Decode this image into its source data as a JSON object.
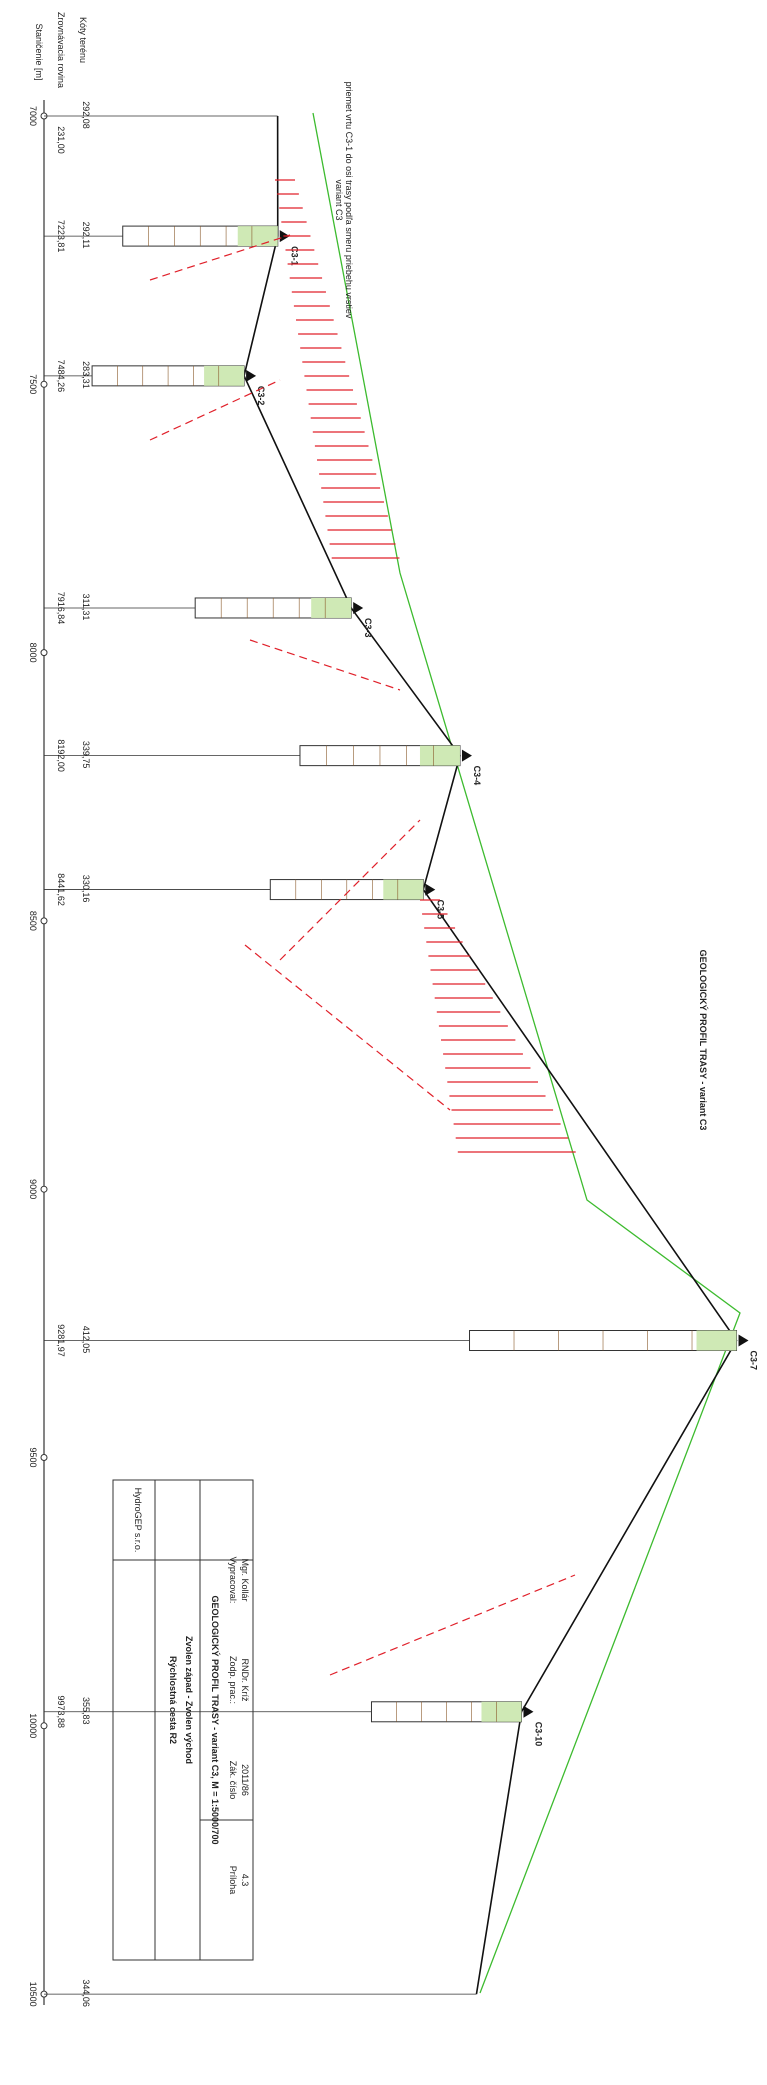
{
  "title": "GEOLOGICKÝ PROFIL TRASY - variant C3",
  "axis": {
    "elevation_label": "Kóty terénu",
    "datum_label": "Zrovnávacia rovina",
    "station_label": "Staničenie [m]",
    "datum": {
      "value": 231,
      "label": "231,00"
    },
    "stations": [
      7000,
      7500,
      8000,
      8500,
      9000,
      9500,
      10000,
      10500
    ]
  },
  "points": [
    {
      "station": 7000,
      "elevation": {
        "value": 292.08,
        "label": "292,08"
      }
    },
    {
      "station": {
        "value": 7223.81,
        "label": "7223,81"
      },
      "elevation": {
        "value": 292.11,
        "label": "292,11"
      },
      "borehole": "C3-1"
    },
    {
      "station": {
        "value": 7484.26,
        "label": "7484,26"
      },
      "elevation": {
        "value": 283.31,
        "label": "283,31"
      },
      "borehole": "C3-2"
    },
    {
      "station": {
        "value": 7916.84,
        "label": "7916,84"
      },
      "elevation": {
        "value": 311.31,
        "label": "311,31"
      },
      "borehole": "C3-3"
    },
    {
      "station": {
        "value": 8192,
        "label": "8192,00"
      },
      "elevation": {
        "value": 339.75,
        "label": "339,75"
      },
      "borehole": "C3-4"
    },
    {
      "station": {
        "value": 8441.62,
        "label": "8441,62"
      },
      "elevation": {
        "value": 330.16,
        "label": "330,16"
      },
      "borehole": "C3-5"
    },
    {
      "station": {
        "value": 9281.97,
        "label": "9281,97"
      },
      "elevation": {
        "value": 412.05,
        "label": "412,05"
      },
      "borehole": "C3-7"
    },
    {
      "station": {
        "value": 9973.88,
        "label": "9973,88"
      },
      "elevation": {
        "value": 355.83,
        "label": "355,83"
      },
      "borehole": "C3-10"
    },
    {
      "station": 10500,
      "elevation": {
        "value": 344.06,
        "label": "344,06"
      }
    }
  ],
  "notes": [
    "priemet vrtu C3-1 do osi trasy podľa smeru priebehu vrstiev",
    "variant C3"
  ],
  "title_block": {
    "company": "HydroGEP s.r.o.",
    "project": "Rýchlostná cesta R2",
    "section": "Zvolen západ - Zvolen východ",
    "drawing": "GEOLOGICKÝ PROFIL TRASY - variant C3, M = 1:5000/700",
    "rows": [
      [
        "Vypracoval:",
        "Mgr. Kollár"
      ],
      [
        "Zodp. prac.:",
        "RNDr. Kríž"
      ],
      [
        "Zák. číslo",
        "2011/86"
      ],
      [
        "Príloha",
        "4.3"
      ]
    ]
  }
}
